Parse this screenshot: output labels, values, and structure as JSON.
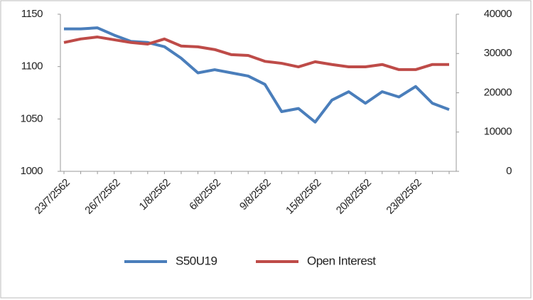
{
  "chart_data": {
    "type": "line",
    "categories": [
      "23/7/2562",
      null,
      null,
      "26/7/2562",
      null,
      null,
      "1/8/2562",
      null,
      null,
      "6/8/2562",
      null,
      null,
      "9/8/2562",
      null,
      null,
      "15/8/2562",
      null,
      null,
      "20/8/2562",
      null,
      null,
      "23/8/2562",
      null,
      null
    ],
    "series": [
      {
        "name": "S50U19",
        "color": "#4a7ebb",
        "values": [
          1136,
          1136,
          1137,
          1130,
          1124,
          1123,
          1119,
          1108,
          1094,
          1097,
          1094,
          1091,
          1083,
          1057,
          1060,
          1047,
          1068,
          1076,
          1065,
          1076,
          1071,
          1081,
          1065,
          1059
        ]
      },
      {
        "name": "Open Interest",
        "color": "#be4b48",
        "axis": "y2",
        "values": [
          32800,
          33700,
          34200,
          33500,
          32800,
          32400,
          33700,
          31900,
          31700,
          31000,
          29700,
          29500,
          28000,
          27500,
          26600,
          27900,
          27200,
          26600,
          26600,
          27200,
          25900,
          25900,
          27200,
          27200
        ]
      }
    ],
    "ylim": [
      1000,
      1150
    ],
    "yticks": [
      1000,
      1050,
      1100,
      1150
    ],
    "y2lim": [
      0,
      40000
    ],
    "y2ticks": [
      0,
      10000,
      20000,
      30000,
      40000
    ],
    "grid": false,
    "legend": "bottom"
  }
}
